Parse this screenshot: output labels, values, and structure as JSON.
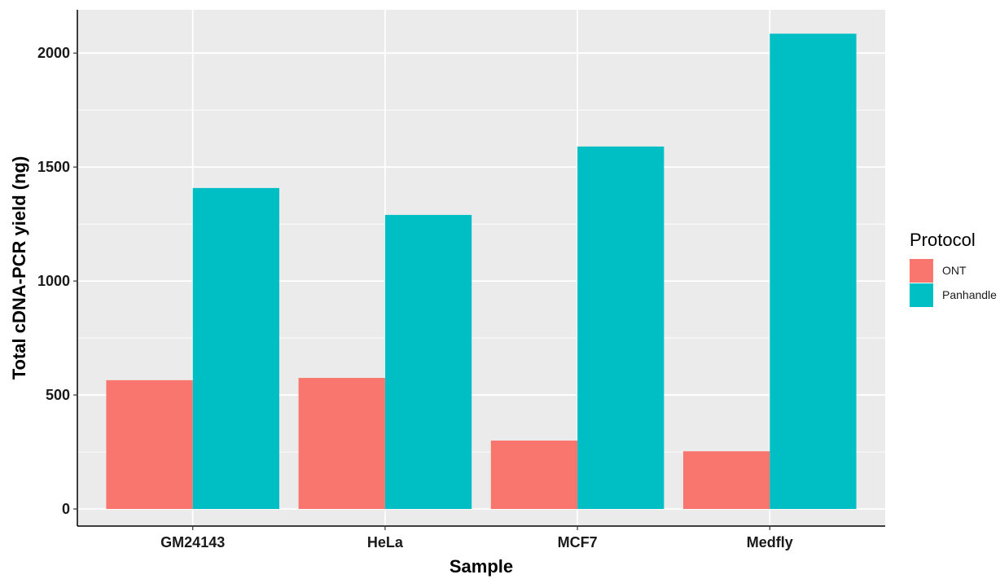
{
  "chart_data": {
    "type": "bar",
    "title": "",
    "xlabel": "Sample",
    "ylabel": "Total cDNA-PCR yield (ng)",
    "categories": [
      "GM24143",
      "HeLa",
      "MCF7",
      "Medfly"
    ],
    "series": [
      {
        "name": "ONT",
        "values": [
          565,
          575,
          300,
          253
        ],
        "color": "#F8766D"
      },
      {
        "name": "Panhandle",
        "values": [
          1408,
          1290,
          1590,
          2085
        ],
        "color": "#00BFC4"
      }
    ],
    "ylim": [
      -75,
      2190
    ],
    "yticks": [
      0,
      500,
      1000,
      1500,
      2000
    ],
    "grid": true,
    "panel_background": "#EBEBEB",
    "grid_color": "#FFFFFF",
    "legend": {
      "title": "Protocol",
      "position": "right"
    }
  }
}
